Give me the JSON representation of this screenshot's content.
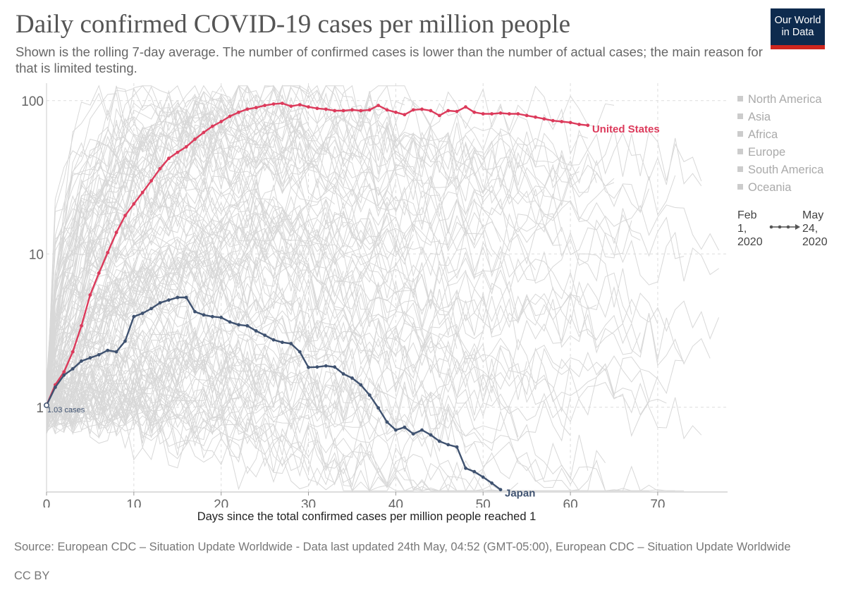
{
  "title": "Daily confirmed COVID-19 cases per million people",
  "subtitle": "Shown is the rolling 7-day average. The number of confirmed cases is lower than the number of actual cases; the main reason for that is limited testing.",
  "logo": {
    "line1": "Our World",
    "line2": "in Data"
  },
  "legend": {
    "items": [
      "North America",
      "Asia",
      "Africa",
      "Europe",
      "South America",
      "Oceania"
    ]
  },
  "timeline": {
    "start": "Feb 1, 2020",
    "end": "May 24, 2020"
  },
  "footer": {
    "source": "Source: European CDC – Situation Update Worldwide - Data last updated 24th May, 04:52 (GMT-05:00), European CDC – Situation Update Worldwide",
    "license": "CC BY"
  },
  "colors": {
    "united_states": "#dc3a5b",
    "japan": "#3f5270",
    "background_lines": "#d6d6d6",
    "logo_bg": "#0e2b4e",
    "logo_bar": "#ce261e"
  },
  "chart_data": {
    "type": "line",
    "title": "Daily confirmed COVID-19 cases per million people",
    "xlabel": "Days since the total confirmed cases per million people reached 1",
    "ylabel": "",
    "yscale": "log",
    "xlim": [
      0,
      78
    ],
    "ylim": [
      0.28,
      130
    ],
    "xticks": [
      0,
      10,
      20,
      30,
      40,
      50,
      60,
      70
    ],
    "yticks": [
      1,
      10,
      100
    ],
    "grid": true,
    "start_annotation": "1.03 cases",
    "series": [
      {
        "name": "United States",
        "highlight": true,
        "x": [
          0,
          1,
          2,
          3,
          4,
          5,
          6,
          7,
          8,
          9,
          10,
          11,
          12,
          13,
          14,
          15,
          16,
          17,
          18,
          19,
          20,
          21,
          22,
          23,
          24,
          25,
          26,
          27,
          28,
          29,
          30,
          31,
          32,
          33,
          34,
          35,
          36,
          37,
          38,
          39,
          40,
          41,
          42,
          43,
          44,
          45,
          46,
          47,
          48,
          49,
          50,
          51,
          52,
          53,
          54,
          55,
          56,
          57,
          58,
          59,
          60,
          61,
          62
        ],
        "values": [
          1.03,
          1.4,
          1.7,
          2.3,
          3.4,
          5.4,
          7.5,
          10.2,
          13.8,
          17.8,
          21.2,
          25.2,
          30,
          36,
          42,
          46,
          50,
          56,
          62,
          68,
          73,
          79,
          84,
          88,
          90,
          93,
          95,
          96,
          92,
          94,
          91,
          89,
          88,
          86,
          86,
          87,
          86,
          87,
          93,
          87,
          84,
          81,
          87,
          88,
          86,
          80,
          86,
          85,
          91,
          84,
          82,
          82,
          83,
          82,
          82,
          80,
          78,
          76,
          74,
          73,
          72,
          70,
          69
        ]
      },
      {
        "name": "Japan",
        "highlight": true,
        "x": [
          0,
          1,
          2,
          3,
          4,
          5,
          6,
          7,
          8,
          9,
          10,
          11,
          12,
          13,
          14,
          15,
          16,
          17,
          18,
          19,
          20,
          21,
          22,
          23,
          24,
          25,
          26,
          27,
          28,
          29,
          30,
          31,
          32,
          33,
          34,
          35,
          36,
          37,
          38,
          39,
          40,
          41,
          42,
          43,
          44,
          45,
          46,
          47,
          48,
          49,
          50,
          51,
          52
        ],
        "values": [
          1.03,
          1.35,
          1.62,
          1.78,
          2.0,
          2.1,
          2.2,
          2.35,
          2.3,
          2.7,
          3.9,
          4.1,
          4.4,
          4.8,
          5.0,
          5.2,
          5.2,
          4.2,
          4.0,
          3.9,
          3.85,
          3.6,
          3.45,
          3.4,
          3.15,
          2.95,
          2.75,
          2.65,
          2.6,
          2.3,
          1.82,
          1.83,
          1.86,
          1.83,
          1.65,
          1.55,
          1.4,
          1.2,
          0.99,
          0.8,
          0.71,
          0.74,
          0.67,
          0.71,
          0.66,
          0.6,
          0.57,
          0.55,
          0.4,
          0.38,
          0.35,
          0.32,
          0.29
        ]
      }
    ]
  }
}
